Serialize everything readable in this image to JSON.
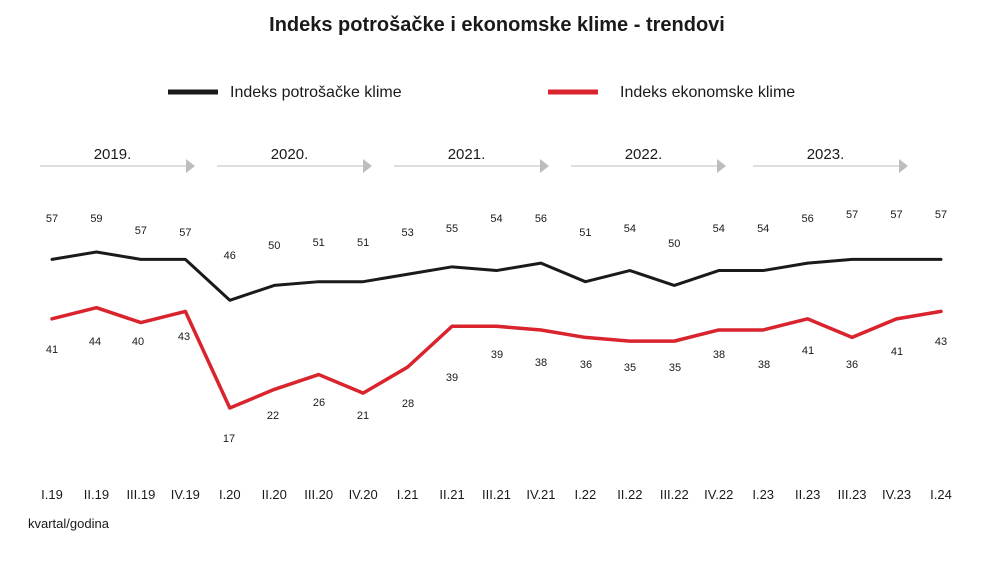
{
  "chart_data": {
    "type": "line",
    "title": "Indeks potrošačke i ekonomske klime - trendovi",
    "xlabel": "kvartal/godina",
    "ylabel": "",
    "categories": [
      "I.19",
      "II.19",
      "III.19",
      "IV.19",
      "I.20",
      "II.20",
      "III.20",
      "IV.20",
      "I.21",
      "II.21",
      "III.21",
      "IV.21",
      "I.22",
      "II.22",
      "III.22",
      "IV.22",
      "I.23",
      "II.23",
      "III.23",
      "IV.23",
      "I.24"
    ],
    "years": [
      "2019.",
      "2020.",
      "2021.",
      "2022.",
      "2023."
    ],
    "series": [
      {
        "name": "Indeks potrošačke klime",
        "color": "#1a1a1a",
        "values": [
          57,
          59,
          57,
          57,
          46,
          50,
          51,
          51,
          53,
          55,
          54,
          56,
          51,
          54,
          50,
          54,
          54,
          56,
          57,
          57,
          57
        ]
      },
      {
        "name": "Indeks ekonomske klime",
        "color": "#d9232d",
        "values": [
          41,
          44,
          40,
          43,
          17,
          22,
          26,
          21,
          28,
          39,
          39,
          38,
          36,
          35,
          35,
          38,
          38,
          41,
          36,
          41,
          43
        ]
      }
    ],
    "legend": "top-center",
    "grid": false
  }
}
